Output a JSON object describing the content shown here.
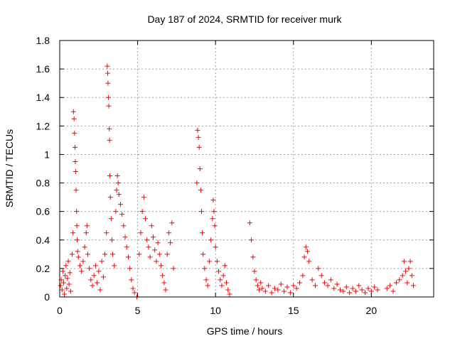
{
  "chart_data": {
    "type": "scatter",
    "title": "Day 187 of 2024, SRMTID for receiver murk",
    "xlabel": "GPS time / hours",
    "ylabel": "SRMTID / TECUs",
    "xlim": [
      0,
      24
    ],
    "ylim": [
      0,
      1.8
    ],
    "xticks": [
      0,
      5,
      10,
      15,
      20
    ],
    "yticks": [
      0,
      0.2,
      0.4,
      0.6,
      0.8,
      1,
      1.2,
      1.4,
      1.6,
      1.8
    ],
    "xtick_labels": [
      "0",
      "5",
      "10",
      "15",
      "20"
    ],
    "ytick_labels": [
      "0",
      "0.2",
      "0.4",
      "0.6",
      "0.8",
      "1",
      "1.2",
      "1.4",
      "1.6",
      "1.8"
    ],
    "grid": true,
    "marker": "+",
    "marker_color": "#ff0000",
    "series": [
      {
        "name": "SRMTID",
        "points": [
          [
            0.05,
            0.08
          ],
          [
            0.1,
            0.12
          ],
          [
            0.15,
            0.05
          ],
          [
            0.2,
            0.18
          ],
          [
            0.25,
            0.1
          ],
          [
            0.3,
            0.02
          ],
          [
            0.35,
            0.15
          ],
          [
            0.4,
            0.22
          ],
          [
            0.45,
            0.06
          ],
          [
            0.5,
            0.13
          ],
          [
            0.55,
            0.25
          ],
          [
            0.6,
            0.09
          ],
          [
            0.65,
            0.17
          ],
          [
            0.7,
            0.04
          ],
          [
            0.8,
            0.3
          ],
          [
            0.85,
            0.45
          ],
          [
            0.88,
            1.3
          ],
          [
            0.92,
            1.25
          ],
          [
            0.95,
            1.15
          ],
          [
            0.98,
            1.05
          ],
          [
            1.0,
            0.95
          ],
          [
            1.02,
            0.88
          ],
          [
            1.05,
            0.75
          ],
          [
            1.08,
            0.6
          ],
          [
            1.1,
            0.5
          ],
          [
            1.12,
            0.4
          ],
          [
            1.15,
            0.32
          ],
          [
            1.2,
            0.28
          ],
          [
            1.3,
            0.22
          ],
          [
            1.4,
            0.18
          ],
          [
            1.5,
            0.25
          ],
          [
            1.6,
            0.35
          ],
          [
            1.7,
            0.45
          ],
          [
            1.75,
            0.5
          ],
          [
            1.8,
            0.3
          ],
          [
            1.9,
            0.2
          ],
          [
            2.0,
            0.12
          ],
          [
            2.1,
            0.08
          ],
          [
            2.2,
            0.15
          ],
          [
            2.3,
            0.22
          ],
          [
            2.4,
            0.1
          ],
          [
            2.5,
            0.18
          ],
          [
            2.6,
            0.05
          ],
          [
            2.7,
            0.25
          ],
          [
            2.8,
            0.14
          ],
          [
            2.9,
            0.3
          ],
          [
            3.0,
            0.45
          ],
          [
            3.05,
            1.62
          ],
          [
            3.08,
            1.57
          ],
          [
            3.1,
            1.5
          ],
          [
            3.12,
            1.4
          ],
          [
            3.15,
            1.34
          ],
          [
            3.18,
            1.18
          ],
          [
            3.2,
            1.1
          ],
          [
            3.22,
            0.85
          ],
          [
            3.25,
            0.7
          ],
          [
            3.3,
            0.55
          ],
          [
            3.35,
            0.4
          ],
          [
            3.4,
            0.3
          ],
          [
            3.5,
            0.22
          ],
          [
            3.6,
            0.6
          ],
          [
            3.65,
            0.75
          ],
          [
            3.7,
            0.85
          ],
          [
            3.75,
            0.8
          ],
          [
            3.8,
            0.72
          ],
          [
            3.9,
            0.65
          ],
          [
            4.0,
            0.58
          ],
          [
            4.1,
            0.5
          ],
          [
            4.2,
            0.42
          ],
          [
            4.3,
            0.35
          ],
          [
            4.4,
            0.28
          ],
          [
            4.5,
            0.2
          ],
          [
            4.6,
            0.12
          ],
          [
            4.7,
            0.06
          ],
          [
            4.8,
            0.03
          ],
          [
            4.95,
            0.0
          ],
          [
            5.1,
            0.3
          ],
          [
            5.2,
            0.45
          ],
          [
            5.3,
            0.6
          ],
          [
            5.4,
            0.7
          ],
          [
            5.5,
            0.55
          ],
          [
            5.6,
            0.4
          ],
          [
            5.7,
            0.35
          ],
          [
            5.8,
            0.28
          ],
          [
            5.9,
            0.5
          ],
          [
            6.0,
            0.42
          ],
          [
            6.1,
            0.33
          ],
          [
            6.2,
            0.25
          ],
          [
            6.3,
            0.38
          ],
          [
            6.4,
            0.3
          ],
          [
            6.5,
            0.22
          ],
          [
            6.6,
            0.15
          ],
          [
            6.7,
            0.1
          ],
          [
            6.8,
            0.05
          ],
          [
            6.9,
            0.3
          ],
          [
            7.0,
            0.45
          ],
          [
            7.1,
            0.38
          ],
          [
            7.2,
            0.52
          ],
          [
            7.3,
            0.2
          ],
          [
            8.8,
            0.8
          ],
          [
            8.85,
            1.17
          ],
          [
            8.9,
            1.12
          ],
          [
            8.95,
            1.05
          ],
          [
            9.0,
            0.9
          ],
          [
            9.05,
            0.75
          ],
          [
            9.1,
            0.6
          ],
          [
            9.15,
            0.45
          ],
          [
            9.2,
            0.3
          ],
          [
            9.3,
            0.2
          ],
          [
            9.4,
            0.12
          ],
          [
            9.5,
            0.08
          ],
          [
            9.6,
            0.25
          ],
          [
            9.7,
            0.4
          ],
          [
            9.8,
            0.55
          ],
          [
            9.85,
            0.68
          ],
          [
            9.9,
            0.6
          ],
          [
            9.95,
            0.5
          ],
          [
            10.0,
            0.35
          ],
          [
            10.1,
            0.25
          ],
          [
            10.2,
            0.18
          ],
          [
            10.3,
            0.12
          ],
          [
            10.4,
            0.08
          ],
          [
            10.5,
            0.15
          ],
          [
            10.6,
            0.22
          ],
          [
            10.7,
            0.1
          ],
          [
            10.8,
            0.05
          ],
          [
            10.9,
            0.02
          ],
          [
            12.2,
            0.52
          ],
          [
            12.3,
            0.4
          ],
          [
            12.4,
            0.28
          ],
          [
            12.5,
            0.18
          ],
          [
            12.6,
            0.12
          ],
          [
            12.7,
            0.08
          ],
          [
            12.8,
            0.05
          ],
          [
            12.9,
            0.1
          ],
          [
            13.0,
            0.06
          ],
          [
            13.2,
            0.04
          ],
          [
            13.4,
            0.08
          ],
          [
            13.6,
            0.03
          ],
          [
            13.8,
            0.06
          ],
          [
            14.0,
            0.05
          ],
          [
            14.2,
            0.09
          ],
          [
            14.4,
            0.04
          ],
          [
            14.6,
            0.07
          ],
          [
            14.8,
            0.03
          ],
          [
            15.0,
            0.08
          ],
          [
            15.2,
            0.06
          ],
          [
            15.4,
            0.1
          ],
          [
            15.6,
            0.15
          ],
          [
            15.7,
            0.28
          ],
          [
            15.8,
            0.35
          ],
          [
            15.9,
            0.32
          ],
          [
            16.0,
            0.25
          ],
          [
            16.2,
            0.12
          ],
          [
            16.4,
            0.08
          ],
          [
            16.6,
            0.2
          ],
          [
            16.8,
            0.15
          ],
          [
            17.0,
            0.1
          ],
          [
            17.2,
            0.08
          ],
          [
            17.4,
            0.12
          ],
          [
            17.6,
            0.06
          ],
          [
            17.8,
            0.09
          ],
          [
            18.0,
            0.05
          ],
          [
            18.2,
            0.04
          ],
          [
            18.4,
            0.07
          ],
          [
            18.6,
            0.03
          ],
          [
            18.8,
            0.06
          ],
          [
            19.0,
            0.04
          ],
          [
            19.2,
            0.08
          ],
          [
            19.4,
            0.05
          ],
          [
            19.6,
            0.03
          ],
          [
            19.8,
            0.06
          ],
          [
            20.0,
            0.04
          ],
          [
            20.2,
            0.07
          ],
          [
            20.4,
            0.05
          ],
          [
            21.0,
            0.06
          ],
          [
            21.2,
            0.08
          ],
          [
            21.4,
            0.04
          ],
          [
            21.6,
            0.1
          ],
          [
            21.8,
            0.12
          ],
          [
            22.0,
            0.15
          ],
          [
            22.1,
            0.25
          ],
          [
            22.2,
            0.18
          ],
          [
            22.3,
            0.1
          ],
          [
            22.4,
            0.2
          ],
          [
            22.5,
            0.25
          ],
          [
            22.6,
            0.15
          ],
          [
            22.7,
            0.08
          ]
        ]
      }
    ]
  }
}
